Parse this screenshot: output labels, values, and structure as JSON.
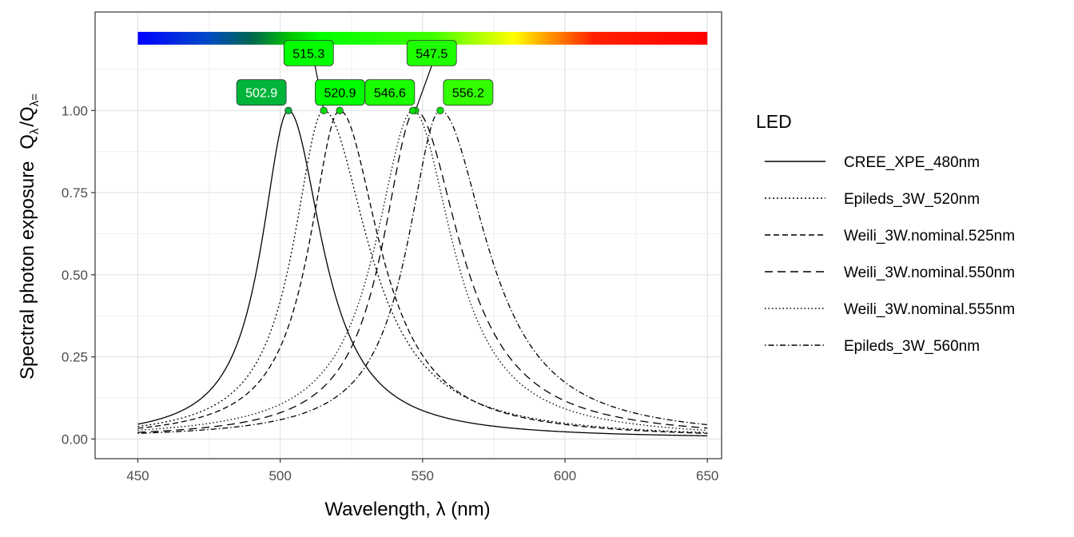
{
  "chart_data": {
    "type": "line",
    "x_axis": {
      "label": "Wavelength, λ (nm)",
      "range": [
        435,
        655
      ],
      "ticks": [
        450,
        500,
        550,
        600,
        650
      ]
    },
    "y_axis": {
      "label_text": "Spectral photon exposure",
      "label_math": "Q",
      "label_sub_num": "λ",
      "label_sub_den": "λ=",
      "range": [
        -0.06,
        1.3
      ],
      "ticks": [
        0.0,
        0.25,
        0.5,
        0.75,
        1.0
      ],
      "tick_labels": [
        "0.00",
        "0.25",
        "0.50",
        "0.75",
        "1.00"
      ]
    },
    "grid": true,
    "legend": {
      "title": "LED",
      "position": "right"
    },
    "spectrum_bar": {
      "x_range": [
        450,
        650
      ],
      "y": 1.22
    },
    "series": [
      {
        "name": "CREE_XPE_480nm",
        "linetype": "solid",
        "peak": 502.9,
        "hwhm_left": 11.5,
        "hwhm_right": 14.5,
        "peak_label": "502.9",
        "label_fill": "#00b439",
        "label_text_color": "#ffffff"
      },
      {
        "name": "Epileds_3W_520nm",
        "linetype": "dotted-short",
        "peak": 515.3,
        "hwhm_left": 13,
        "hwhm_right": 19,
        "peak_label": "515.3",
        "label_fill": "#00ff00",
        "label_text_color": "#000000"
      },
      {
        "name": "Weili_3W.nominal.525nm",
        "linetype": "dashed",
        "peak": 520.9,
        "hwhm_left": 13,
        "hwhm_right": 17,
        "peak_label": "520.9",
        "label_fill": "#00ff00",
        "label_text_color": "#000000"
      },
      {
        "name": "Weili_3W.nominal.550nm",
        "linetype": "longdash",
        "peak": 547.5,
        "hwhm_left": 14,
        "hwhm_right": 19,
        "peak_label": "547.5",
        "label_fill": "#1eff00",
        "label_text_color": "#000000"
      },
      {
        "name": "Weili_3W.nominal.555nm",
        "linetype": "dotted",
        "peak": 546.6,
        "hwhm_left": 16,
        "hwhm_right": 17,
        "peak_label": "546.6",
        "label_fill": "#1aff00",
        "label_text_color": "#000000"
      },
      {
        "name": "Epileds_3W_560nm",
        "linetype": "dotdash",
        "peak": 556.2,
        "hwhm_left": 14,
        "hwhm_right": 20,
        "peak_label": "556.2",
        "label_fill": "#33ff00",
        "label_text_color": "#000000"
      }
    ]
  }
}
